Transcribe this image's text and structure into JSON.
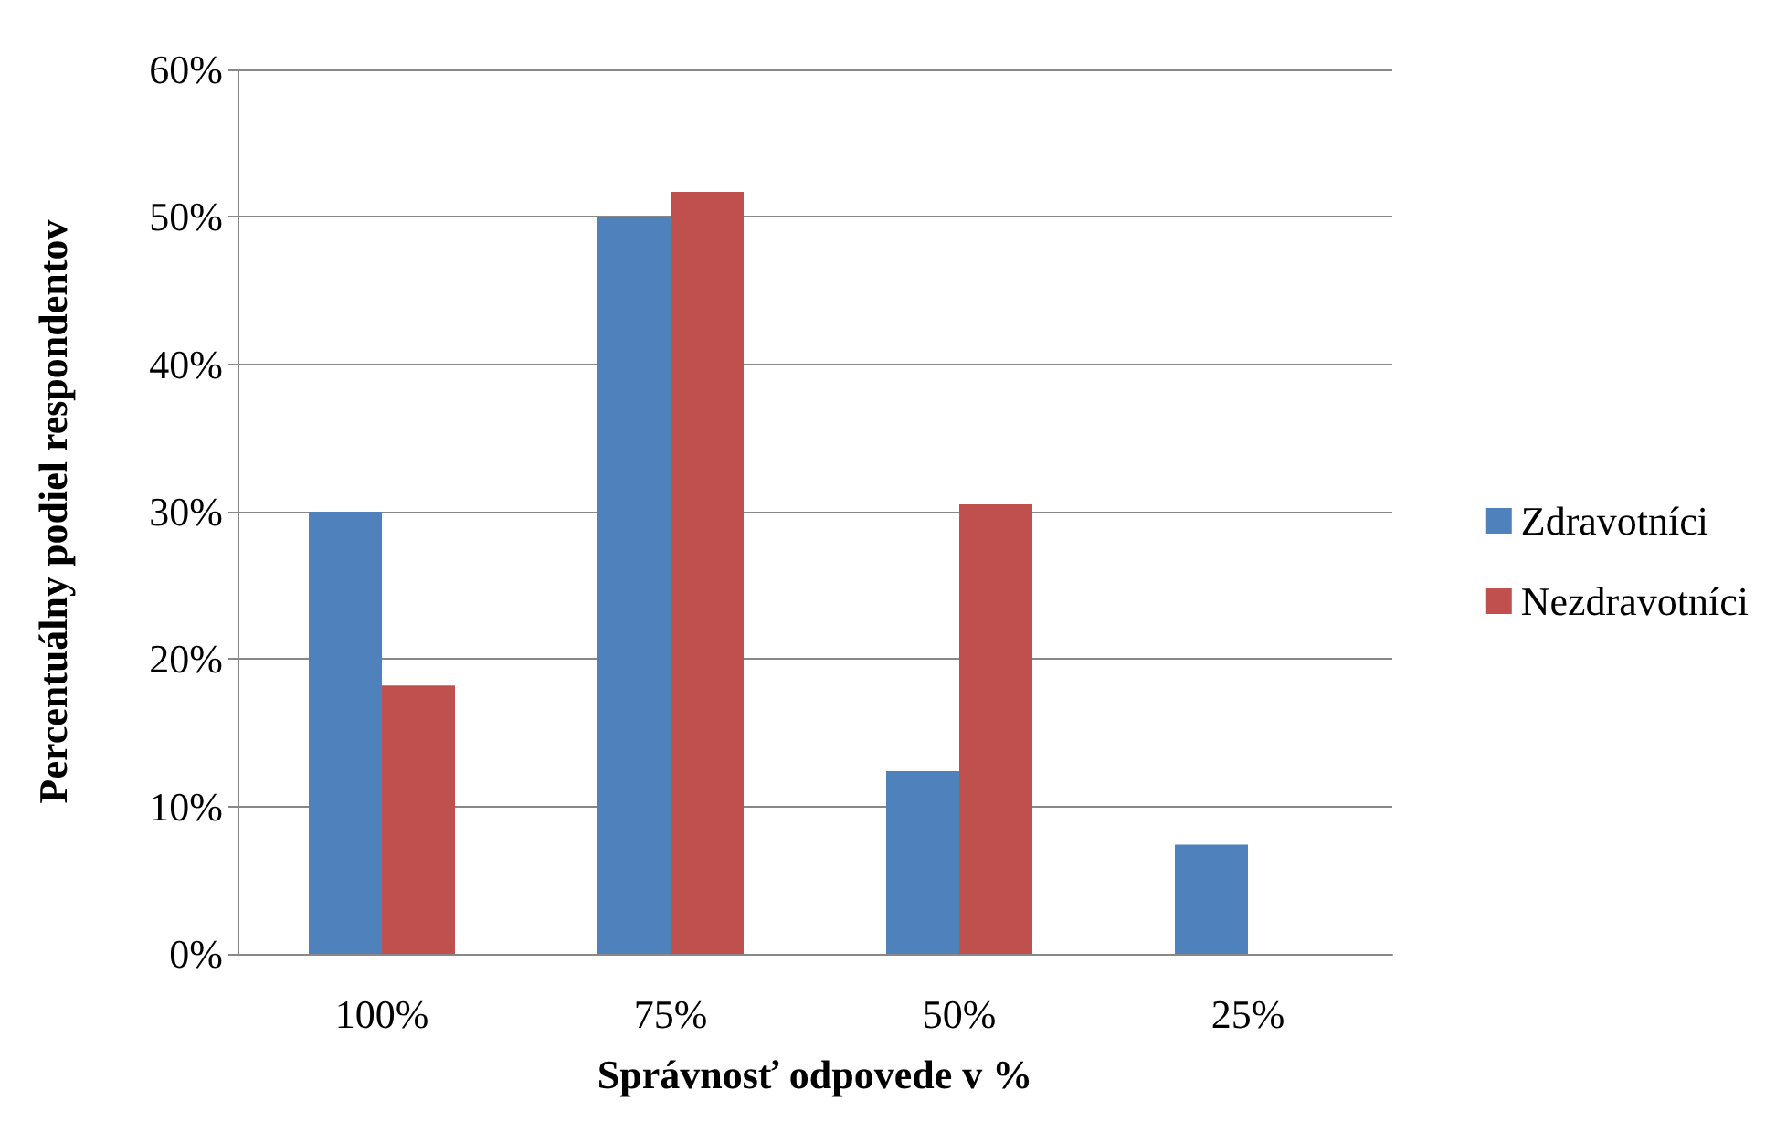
{
  "chart_data": {
    "type": "bar",
    "xlabel": "Správnosť odpovede v %",
    "ylabel": "Percentuálny podiel respondentov",
    "categories": [
      "100%",
      "75%",
      "50%",
      "25%"
    ],
    "series": [
      {
        "name": "Zdravotníci",
        "color": "#4f81bd",
        "values": [
          30,
          50,
          12.4,
          7.4
        ]
      },
      {
        "name": "Nezdravotníci",
        "color": "#c0504d",
        "values": [
          18.2,
          51.7,
          30.5,
          0
        ]
      }
    ],
    "ylim": [
      0,
      60
    ],
    "yticks": [
      {
        "value": 0,
        "label": "0%"
      },
      {
        "value": 10,
        "label": "10%"
      },
      {
        "value": 20,
        "label": "20%"
      },
      {
        "value": 30,
        "label": "30%"
      },
      {
        "value": 40,
        "label": "40%"
      },
      {
        "value": 50,
        "label": "50%"
      },
      {
        "value": 60,
        "label": "60%"
      }
    ],
    "grid": "y",
    "legend": "right"
  }
}
